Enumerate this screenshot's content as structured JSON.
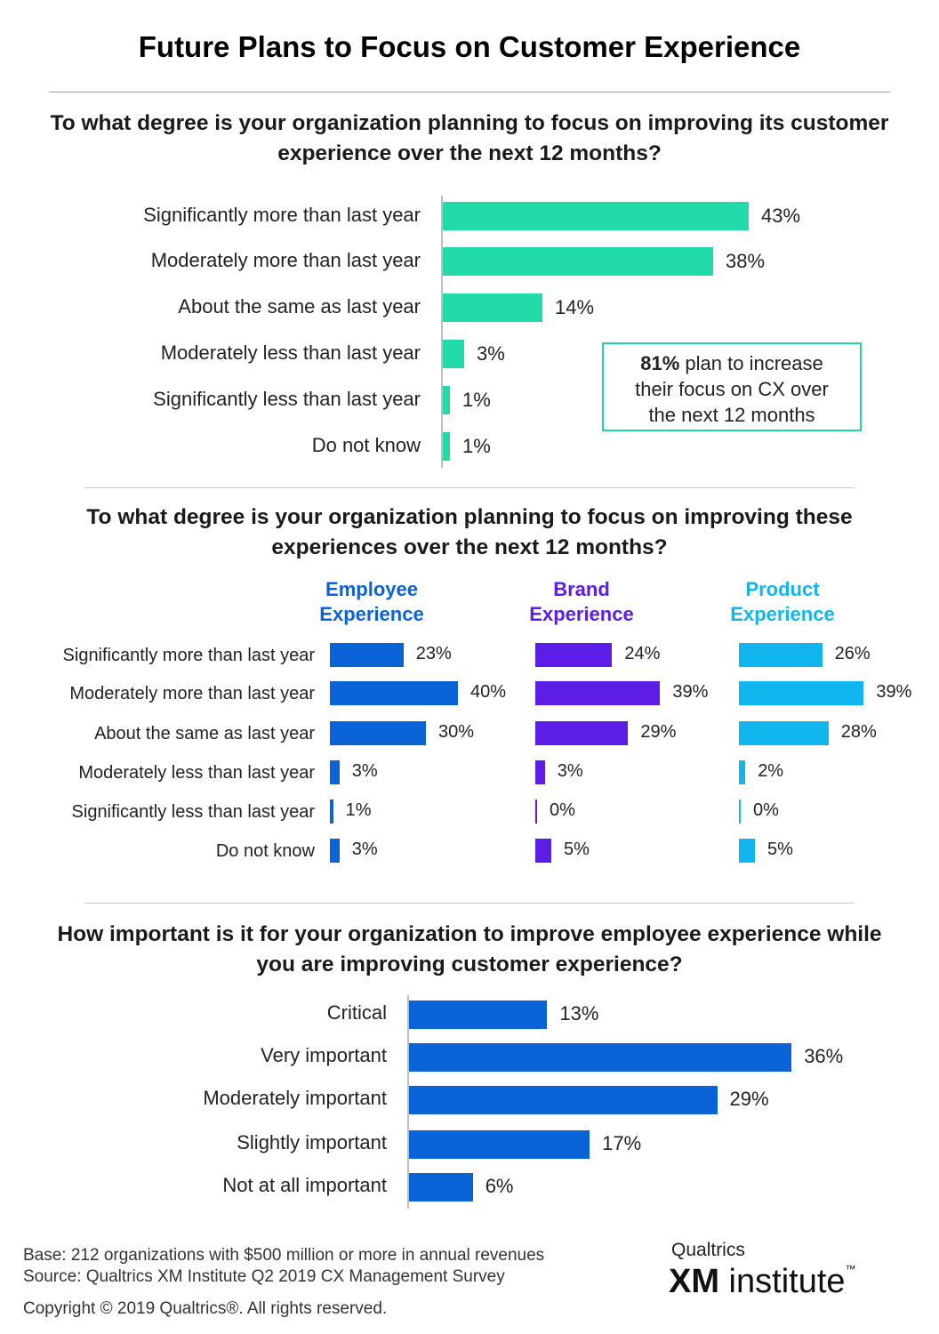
{
  "title": "Future Plans to Focus on Customer Experience",
  "colors": {
    "customer": "#22dba8",
    "employee": "#0b63d8",
    "brand": "#5c1ee6",
    "product": "#11b6ee",
    "importance": "#0b63d8",
    "callout_border": "#22d3a5"
  },
  "callout": {
    "bold": "81%",
    "line1_rest": " plan to increase",
    "line2": "their focus on CX over",
    "line3": "the next 12 months"
  },
  "chart_data": [
    {
      "type": "bar",
      "orientation": "horizontal",
      "title": "To what degree is your organization planning to focus on improving its customer experience over the next 12 months?",
      "categories": [
        "Significantly more than last year",
        "Moderately more than last year",
        "About the same as last year",
        "Moderately less than last year",
        "Significantly less than last year",
        "Do not know"
      ],
      "values": [
        43,
        38,
        14,
        3,
        1,
        1
      ],
      "value_labels": [
        "43%",
        "38%",
        "14%",
        "3%",
        "1%",
        "1%"
      ],
      "unit": "%",
      "xlim": [
        0,
        50
      ],
      "grid": false,
      "legend": "none"
    },
    {
      "type": "bar",
      "orientation": "horizontal",
      "title": "To what degree is your organization planning to focus on improving these experiences over the next 12 months?",
      "categories": [
        "Significantly more than last year",
        "Moderately more than last year",
        "About the same as last year",
        "Moderately less than last year",
        "Significantly less than last year",
        "Do not know"
      ],
      "series": [
        {
          "name": "Employee Experience",
          "name_lines": [
            "Employee",
            "Experience"
          ],
          "values": [
            23,
            40,
            30,
            3,
            1,
            3
          ],
          "value_labels": [
            "23%",
            "40%",
            "30%",
            "3%",
            "1%",
            "3%"
          ]
        },
        {
          "name": "Brand Experience",
          "name_lines": [
            "Brand",
            "Experience"
          ],
          "values": [
            24,
            39,
            29,
            3,
            0,
            5
          ],
          "value_labels": [
            "24%",
            "39%",
            "29%",
            "3%",
            "0%",
            "5%"
          ]
        },
        {
          "name": "Product Experience",
          "name_lines": [
            "Product",
            "Experience"
          ],
          "values": [
            26,
            39,
            28,
            2,
            0,
            5
          ],
          "value_labels": [
            "26%",
            "39%",
            "28%",
            "2%",
            "0%",
            "5%"
          ]
        }
      ],
      "unit": "%",
      "xlim": [
        0,
        45
      ],
      "grid": false,
      "legend": "top"
    },
    {
      "type": "bar",
      "orientation": "horizontal",
      "title": "How important is it for your organization to improve employee experience while you are improving customer experience?",
      "categories": [
        "Critical",
        "Very important",
        "Moderately important",
        "Slightly important",
        "Not at all important"
      ],
      "values": [
        13,
        36,
        29,
        17,
        6
      ],
      "value_labels": [
        "13%",
        "36%",
        "29%",
        "17%",
        "6%"
      ],
      "unit": "%",
      "xlim": [
        0,
        45
      ],
      "grid": false,
      "legend": "none"
    }
  ],
  "footer": {
    "base": "Base: 212 organizations with $500 million or more in annual revenues",
    "source": "Source: Qualtrics XM Institute Q2 2019 CX Management Survey",
    "copyright": "Copyright © 2019 Qualtrics®.  All rights reserved."
  },
  "logo": {
    "top": "Qualtrics",
    "xm": "XM",
    "rest": " institute",
    "tm": "™"
  }
}
